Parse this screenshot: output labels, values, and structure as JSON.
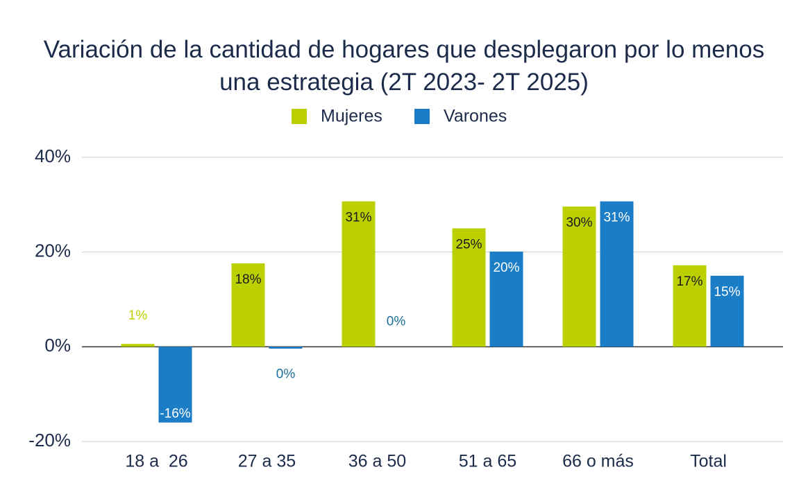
{
  "chart_data": {
    "type": "bar",
    "title": "Variación de la cantidad de hogares que desplegaron por lo menos una estrategia (2T 2023- 2T 2025)",
    "categories": [
      "18 a  26",
      "27 a 35",
      "36 a 50",
      "51 a 65",
      "66 o más",
      "Total"
    ],
    "series": [
      {
        "name": "Mujeres",
        "color": "#bcd000",
        "values": [
          0.6,
          17.6,
          30.7,
          25.0,
          29.6,
          17.2
        ],
        "value_labels": [
          "1%",
          "18%",
          "31%",
          "25%",
          "30%",
          "17%"
        ]
      },
      {
        "name": "Varones",
        "color": "#1a7dc6",
        "values": [
          -16.0,
          -0.4,
          0,
          20.1,
          30.7,
          15.0
        ],
        "value_labels": [
          "-16%",
          "0%",
          "0%",
          "20%",
          "31%",
          "15%"
        ]
      }
    ],
    "ylim": [
      -20,
      40
    ],
    "yticks": [
      {
        "value": -20,
        "label": "-20%"
      },
      {
        "value": 0,
        "label": "0%"
      },
      {
        "value": 20,
        "label": "20%"
      },
      {
        "value": 40,
        "label": "40%"
      }
    ],
    "grid": true,
    "legend": "top"
  }
}
